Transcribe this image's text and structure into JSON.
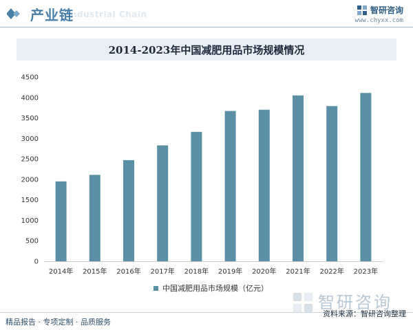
{
  "header": {
    "section_title": "产业链",
    "section_watermark": "Industrial Chain",
    "brand_name": "智研咨询",
    "brand_url": "www.chyxx.com"
  },
  "colors": {
    "bar": "#5b8fa6",
    "accent": "#4a7fa8",
    "title_bg": "#e8eff6"
  },
  "chart_data": {
    "type": "bar",
    "title": "2014-2023年中国减肥用品市场规模情况",
    "categories": [
      "2014年",
      "2015年",
      "2016年",
      "2017年",
      "2018年",
      "2019年",
      "2020年",
      "2021年",
      "2022年",
      "2023年"
    ],
    "series": [
      {
        "name": "中国减肥用品市场规模（亿元）",
        "values": [
          1950,
          2110,
          2470,
          2830,
          3160,
          3670,
          3700,
          4050,
          3790,
          4110
        ]
      }
    ],
    "yticks": [
      "0",
      "500",
      "1000",
      "1500",
      "2000",
      "2500",
      "3000",
      "3500",
      "4000",
      "4500"
    ],
    "ylim": [
      0,
      4500
    ],
    "grid": false,
    "legend": "bottom"
  },
  "watermark": "智研咨询",
  "footer": {
    "left": "精品报告 · 专项定制 · 品质服务",
    "right": "资料来源：智研咨询整理"
  }
}
